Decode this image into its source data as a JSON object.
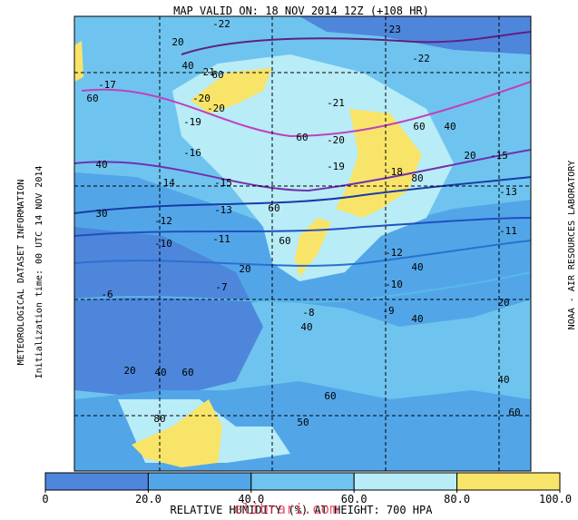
{
  "title": "MAP VALID ON: 18 NOV 2014 12Z (+108 HR)",
  "left_label": "METEOROLOGICAL DATASET INFORMATION",
  "init_label": "Initialization time: 00 UTC 14 NOV 2014",
  "right_label": "NOAA - AIR RESOURCES LABORATORY",
  "bottom_label": "RELATIVE HUMIDITY (%) AT HEIGHT: 700 HPA",
  "watermark": "elibrari.com",
  "legend": {
    "colors": [
      "#4e86dc",
      "#52a6e8",
      "#6fc4ef",
      "#b8ecf6",
      "#f8e468"
    ],
    "ticks": [
      0,
      {
        "value": 20,
        "label": "20.0"
      },
      {
        "value": 40,
        "label": "40.0"
      },
      {
        "value": 60,
        "label": "60.0"
      },
      {
        "value": 80,
        "label": "80.0"
      },
      {
        "value": 100,
        "label": "100.0"
      }
    ]
  },
  "contour_labels": [
    "-22",
    "-23",
    "-22",
    "-21",
    "40",
    "20",
    "60",
    "-17",
    "60",
    "-20",
    "-20",
    "-21",
    "-19",
    "60",
    "-20",
    "60",
    "40",
    "-16",
    "-19",
    "-18",
    "80",
    "20",
    "-15",
    "40",
    "-14",
    "-15",
    "-13",
    "60",
    "-13",
    "-12",
    "30",
    "-10",
    "-11",
    "60",
    "-12",
    "40",
    "-11",
    "20",
    "-10",
    "-6",
    "-7",
    "-8",
    "-9",
    "40",
    "20",
    "40",
    "20",
    "40",
    "60",
    "60",
    "40",
    "60",
    "80",
    "50"
  ]
}
